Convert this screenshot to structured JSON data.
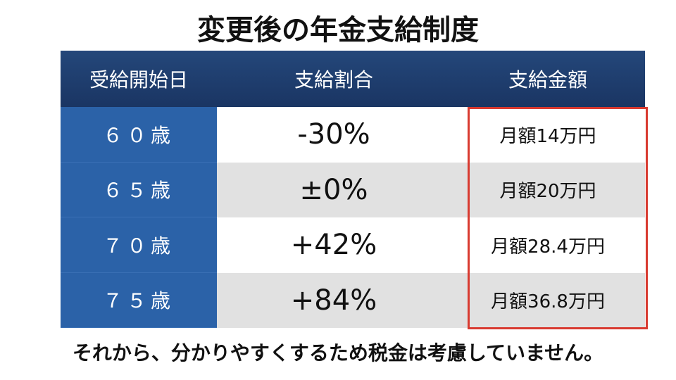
{
  "header": {
    "title": "変更後の年金支給制度"
  },
  "table": {
    "columns": [
      "受給開始日",
      "支給割合",
      "支給金額"
    ],
    "rows": [
      [
        "６０歳",
        "-30%",
        "月額14万円"
      ],
      [
        "６５歳",
        "±0%",
        "月額20万円"
      ],
      [
        "７０歳",
        "+42%",
        "月額28.4万円"
      ],
      [
        "７５歳",
        "+84%",
        "月額36.8万円"
      ]
    ]
  },
  "footer": {
    "note": "それから、分かりやすくするため税金は考慮していません。"
  }
}
